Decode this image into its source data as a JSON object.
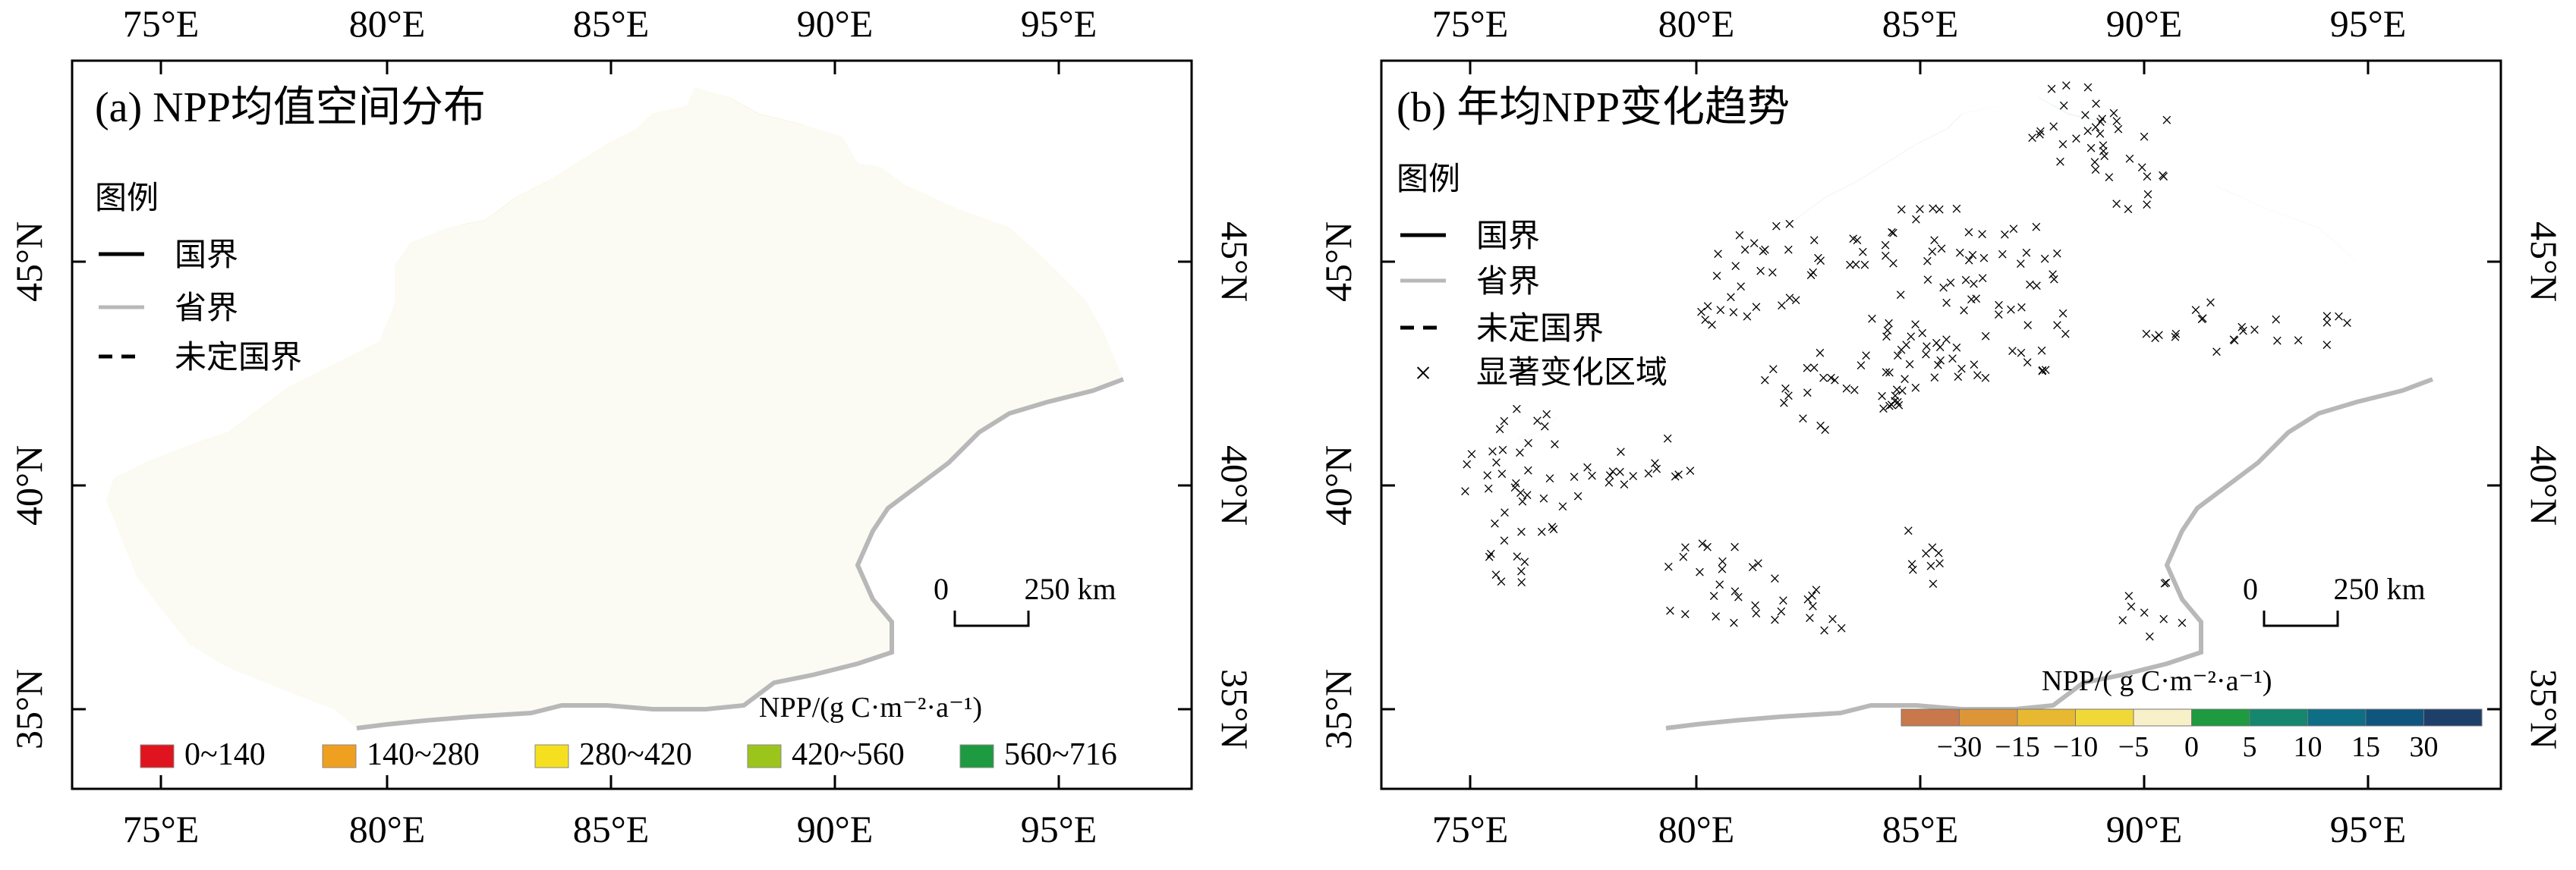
{
  "panels": [
    {
      "id": "a",
      "title": "(a) NPP均值空间分布",
      "top_axis_labels": [
        "75°E",
        "80°E",
        "85°E",
        "90°E",
        "95°E"
      ],
      "bottom_axis_labels": [
        "75°E",
        "80°E",
        "85°E",
        "90°E",
        "95°E"
      ],
      "left_axis_labels": [
        "45°N",
        "40°N",
        "35°N"
      ],
      "right_axis_labels": [
        "45°N",
        "40°N",
        "35°N"
      ],
      "legend": {
        "heading": "图例",
        "items": [
          {
            "label": "国界",
            "style": "solid-black"
          },
          {
            "label": "省界",
            "style": "solid-gray"
          },
          {
            "label": "未定国界",
            "style": "dashed-black"
          }
        ]
      },
      "scale_bar": {
        "zero": "0",
        "distance": "250 km"
      },
      "npp_legend": {
        "title": "NPP/(g C·m⁻²·a⁻¹)",
        "classes": [
          {
            "label": "0~140",
            "color": "#e0141e"
          },
          {
            "label": "140~280",
            "color": "#f0a020"
          },
          {
            "label": "280~420",
            "color": "#f5e020"
          },
          {
            "label": "420~560",
            "color": "#9cc51c"
          },
          {
            "label": "560~716",
            "color": "#1e9a40"
          }
        ]
      }
    },
    {
      "id": "b",
      "title": "(b) 年均NPP变化趋势",
      "top_axis_labels": [
        "75°E",
        "80°E",
        "85°E",
        "90°E",
        "95°E"
      ],
      "bottom_axis_labels": [
        "75°E",
        "80°E",
        "85°E",
        "90°E",
        "95°E"
      ],
      "left_axis_labels": [
        "45°N",
        "40°N",
        "35°N"
      ],
      "right_axis_labels": [
        "45°N",
        "40°N",
        "35°N"
      ],
      "legend": {
        "heading": "图例",
        "items": [
          {
            "label": "国界",
            "style": "solid-black"
          },
          {
            "label": "省界",
            "style": "solid-gray"
          },
          {
            "label": "未定国界",
            "style": "dashed-black"
          },
          {
            "label": "显著变化区域",
            "style": "cross"
          }
        ]
      },
      "scale_bar": {
        "zero": "0",
        "distance": "250 km"
      },
      "trend_colorbar": {
        "title": "NPP/( g C·m⁻²·a⁻¹)",
        "tick_labels": [
          "−30",
          "−15",
          "−10",
          "−5",
          "0",
          "5",
          "10",
          "15",
          "30"
        ],
        "colors": [
          "#c8784a",
          "#dc9638",
          "#e8b830",
          "#f0d838",
          "#f8f0c8",
          "#1e9a40",
          "#14876e",
          "#0e6e86",
          "#10557e",
          "#1e3f6a"
        ]
      }
    }
  ]
}
